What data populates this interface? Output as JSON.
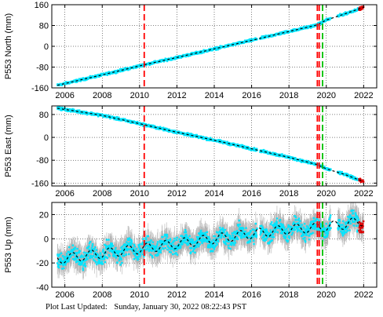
{
  "footer": {
    "label": "Plot Last Updated:",
    "timestamp": "Sunday, January 30, 2022 08:22:43 PST"
  },
  "colors": {
    "data": "#00e5ff",
    "trend": "#000000",
    "error_bars": "#b4b4b4",
    "event_red": "#ff0000",
    "event_green": "#00c000",
    "recent": "#dd0000"
  },
  "chart_data": [
    {
      "type": "scatter",
      "title": "",
      "ylabel": "P553 North (mm)",
      "xlabel": "",
      "xlim": [
        2005.3,
        2022.7
      ],
      "ylim": [
        -160,
        160
      ],
      "xticks": [
        2006,
        2008,
        2010,
        2012,
        2014,
        2016,
        2018,
        2020,
        2022
      ],
      "yticks": [
        -160,
        -80,
        0,
        80,
        160
      ],
      "ytick_labels": [
        "-160",
        "-80",
        "0",
        "80",
        "160"
      ],
      "grid": true,
      "series": [
        {
          "x": [
            2005.6,
            2008.0,
            2010.2,
            2012.0,
            2014.0,
            2016.0,
            2018.0,
            2019.5,
            2020.0,
            2021.0,
            2022.0
          ],
          "y": [
            -150,
            -110,
            -72,
            -43,
            -10,
            23,
            57,
            82,
            101,
            125,
            150
          ],
          "noise": 4,
          "error_bars": false
        }
      ],
      "event_lines": [
        {
          "x": 2010.25,
          "color": "red"
        },
        {
          "x": 2019.52,
          "color": "red"
        },
        {
          "x": 2019.62,
          "color": "red"
        },
        {
          "x": 2019.8,
          "color": "green"
        }
      ]
    },
    {
      "type": "scatter",
      "title": "",
      "ylabel": "P553 East (mm)",
      "xlabel": "",
      "xlim": [
        2005.3,
        2022.7
      ],
      "ylim": [
        -170,
        110
      ],
      "xticks": [
        2006,
        2008,
        2010,
        2012,
        2014,
        2016,
        2018,
        2020,
        2022
      ],
      "yticks": [
        -160,
        -80,
        0,
        80
      ],
      "ytick_labels": [
        "-160",
        "-80",
        "0",
        "80"
      ],
      "grid": true,
      "series": [
        {
          "x": [
            2005.6,
            2008.0,
            2010.2,
            2012.0,
            2014.0,
            2016.0,
            2018.0,
            2019.5,
            2020.0,
            2021.0,
            2022.0
          ],
          "y": [
            102,
            77,
            45,
            18,
            -10,
            -40,
            -70,
            -95,
            -110,
            -130,
            -155
          ],
          "noise": 4,
          "error_bars": false
        }
      ],
      "event_lines": [
        {
          "x": 2010.25,
          "color": "red"
        },
        {
          "x": 2019.52,
          "color": "red"
        },
        {
          "x": 2019.62,
          "color": "red"
        },
        {
          "x": 2019.8,
          "color": "green"
        }
      ]
    },
    {
      "type": "scatter",
      "title": "",
      "ylabel": "P553 Up (mm)",
      "xlabel": "",
      "xlim": [
        2005.3,
        2022.7
      ],
      "ylim": [
        -40,
        30
      ],
      "xticks": [
        2006,
        2008,
        2010,
        2012,
        2014,
        2016,
        2018,
        2020,
        2022
      ],
      "yticks": [
        -40,
        -20,
        0,
        20
      ],
      "ytick_labels": [
        "-40",
        "-20",
        "0",
        "20"
      ],
      "grid": true,
      "series": [
        {
          "x": [
            2005.6,
            2008.0,
            2010.2,
            2012.0,
            2014.0,
            2016.0,
            2018.0,
            2019.5,
            2020.0,
            2021.0,
            2022.0
          ],
          "y": [
            -17,
            -12,
            -8,
            -4,
            0,
            4,
            8,
            9,
            10,
            12,
            15
          ],
          "seasonal_amplitude": 4,
          "noise": 6,
          "error_bars": true
        }
      ],
      "event_lines": [
        {
          "x": 2010.25,
          "color": "red"
        },
        {
          "x": 2019.52,
          "color": "red"
        },
        {
          "x": 2019.62,
          "color": "red"
        },
        {
          "x": 2019.8,
          "color": "green"
        }
      ]
    }
  ]
}
